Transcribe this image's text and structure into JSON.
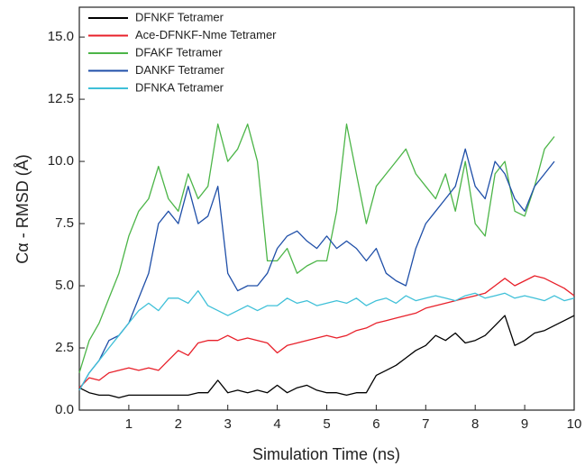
{
  "chart_data": {
    "type": "line",
    "xlabel": "Simulation Time (ns)",
    "ylabel": "Cα - RMSD (Å)",
    "x": [
      0,
      0.2,
      0.4,
      0.6,
      0.8,
      1,
      1.2,
      1.4,
      1.6,
      1.8,
      2,
      2.2,
      2.4,
      2.6,
      2.8,
      3,
      3.2,
      3.4,
      3.6,
      3.8,
      4,
      4.2,
      4.4,
      4.6,
      4.8,
      5,
      5.2,
      5.4,
      5.6,
      5.8,
      6,
      6.2,
      6.4,
      6.6,
      6.8,
      7,
      7.2,
      7.4,
      7.6,
      7.8,
      8,
      8.2,
      8.4,
      8.6,
      8.8,
      9,
      9.2,
      9.4,
      9.6,
      9.8,
      10
    ],
    "xlim": [
      0,
      10
    ],
    "xticks": [
      1,
      2,
      3,
      4,
      5,
      6,
      7,
      8,
      9,
      10
    ],
    "ylim": [
      0,
      16.2
    ],
    "yticks": [
      {
        "value": 0,
        "label": "0.0"
      },
      {
        "value": 2.5,
        "label": "2.5"
      },
      {
        "value": 5,
        "label": "5.0"
      },
      {
        "value": 7.5,
        "label": "7.5"
      },
      {
        "value": 10,
        "label": "10.0"
      },
      {
        "value": 12.5,
        "label": "12.5"
      },
      {
        "value": 15,
        "label": "15.0"
      }
    ],
    "legend": "upper left",
    "series": [
      {
        "name": "DFNKF Tetramer",
        "color": "#000000",
        "values": [
          0.9,
          0.7,
          0.6,
          0.6,
          0.5,
          0.6,
          0.6,
          0.6,
          0.6,
          0.6,
          0.6,
          0.6,
          0.7,
          0.7,
          1.2,
          0.7,
          0.8,
          0.7,
          0.8,
          0.7,
          1.0,
          0.7,
          0.9,
          1.0,
          0.8,
          0.7,
          0.7,
          0.6,
          0.7,
          0.7,
          1.4,
          1.6,
          1.8,
          2.1,
          2.4,
          2.6,
          3.0,
          2.8,
          3.1,
          2.7,
          2.8,
          3.0,
          3.4,
          3.8,
          2.6,
          2.8,
          3.1,
          3.2,
          3.4,
          3.6,
          3.8
        ]
      },
      {
        "name": "Ace-DFNKF-Nme Tetramer",
        "color": "#e8202a",
        "values": [
          0.9,
          1.3,
          1.2,
          1.5,
          1.6,
          1.7,
          1.6,
          1.7,
          1.6,
          2.0,
          2.4,
          2.2,
          2.7,
          2.8,
          2.8,
          3.0,
          2.8,
          2.9,
          2.8,
          2.7,
          2.3,
          2.6,
          2.7,
          2.8,
          2.9,
          3.0,
          2.9,
          3.0,
          3.2,
          3.3,
          3.5,
          3.6,
          3.7,
          3.8,
          3.9,
          4.1,
          4.2,
          4.3,
          4.4,
          4.5,
          4.6,
          4.7,
          5.0,
          5.3,
          5.0,
          5.2,
          5.4,
          5.3,
          5.1,
          4.9,
          4.6
        ]
      },
      {
        "name": "DFAKF Tetramer",
        "color": "#4cb548",
        "values": [
          1.5,
          2.8,
          3.5,
          4.5,
          5.5,
          7.0,
          8.0,
          8.5,
          9.8,
          8.5,
          8.0,
          9.5,
          8.5,
          9.0,
          11.5,
          10.0,
          10.5,
          11.5,
          10.0,
          6.0,
          6.0,
          6.5,
          5.5,
          5.8,
          6.0,
          6.0,
          8.0,
          11.5,
          9.5,
          7.5,
          9.0,
          9.5,
          10.0,
          10.5,
          9.5,
          9.0,
          8.5,
          9.5,
          8.0,
          10.0,
          7.5,
          7.0,
          9.5,
          10.0,
          8.0,
          7.8,
          9.0,
          10.5,
          11.0,
          null,
          null
        ]
      },
      {
        "name": "DANKF Tetramer",
        "color": "#1f4fa8",
        "values": [
          0.8,
          1.5,
          2.0,
          2.8,
          3.0,
          3.5,
          4.5,
          5.5,
          7.5,
          8.0,
          7.5,
          9.0,
          7.5,
          7.8,
          9.0,
          5.5,
          4.8,
          5.0,
          5.0,
          5.5,
          6.5,
          7.0,
          7.2,
          6.8,
          6.5,
          7.0,
          6.5,
          6.8,
          6.5,
          6.0,
          6.5,
          5.5,
          5.2,
          5.0,
          6.5,
          7.5,
          8.0,
          8.5,
          9.0,
          10.5,
          9.0,
          8.5,
          10.0,
          9.5,
          8.5,
          8.0,
          9.0,
          9.5,
          10.0,
          null,
          null
        ]
      },
      {
        "name": "DFNKA Tetramer",
        "color": "#3fc0d8",
        "values": [
          0.8,
          1.5,
          2.0,
          2.5,
          3.0,
          3.5,
          4.0,
          4.3,
          4.0,
          4.5,
          4.5,
          4.3,
          4.8,
          4.2,
          4.0,
          3.8,
          4.0,
          4.2,
          4.0,
          4.2,
          4.2,
          4.5,
          4.3,
          4.4,
          4.2,
          4.3,
          4.4,
          4.3,
          4.5,
          4.2,
          4.4,
          4.5,
          4.3,
          4.6,
          4.4,
          4.5,
          4.6,
          4.5,
          4.4,
          4.6,
          4.7,
          4.5,
          4.6,
          4.7,
          4.5,
          4.6,
          4.5,
          4.4,
          4.6,
          4.4,
          4.5
        ]
      }
    ]
  }
}
